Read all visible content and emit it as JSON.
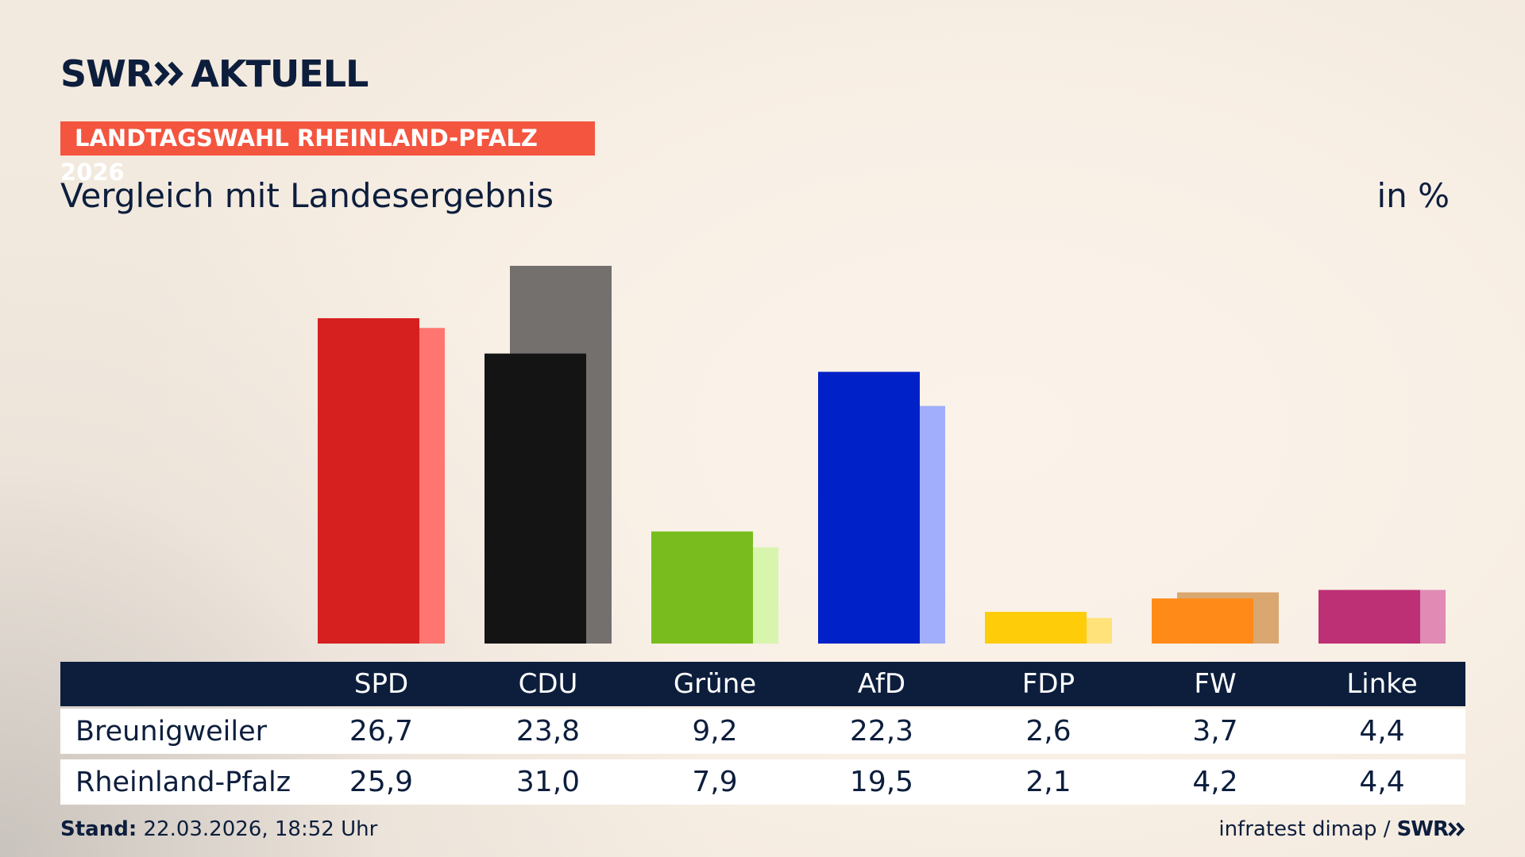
{
  "header": {
    "logo": "SWR",
    "logo_sub": "AKTUELL",
    "badge": "LANDTAGSWAHL RHEINLAND-PFALZ 2026",
    "title": "Vergleich mit Landesergebnis",
    "unit": "in %"
  },
  "chart_data": {
    "type": "bar",
    "categories": [
      "SPD",
      "CDU",
      "Grüne",
      "AfD",
      "FDP",
      "FW",
      "Linke"
    ],
    "series": [
      {
        "name": "Breunigweiler",
        "colors": [
          "#d61f1f",
          "#141414",
          "#78bd1d",
          "#0021c7",
          "#ffcc0a",
          "#ff8a17",
          "#bd3075"
        ],
        "values": [
          26.7,
          23.8,
          9.2,
          22.3,
          2.6,
          3.7,
          4.4
        ],
        "value_labels": [
          "26,7",
          "23,8",
          "9,2",
          "22,3",
          "2,6",
          "3,7",
          "4,4"
        ]
      },
      {
        "name": "Rheinland-Pfalz",
        "colors": [
          "#ff7670",
          "#73706e",
          "#d8f5ae",
          "#a0aefc",
          "#ffe27a",
          "#dba770",
          "#e08ab4"
        ],
        "values": [
          25.9,
          31.0,
          7.9,
          19.5,
          2.1,
          4.2,
          4.4
        ],
        "value_labels": [
          "25,9",
          "31,0",
          "7,9",
          "19,5",
          "2,1",
          "4,2",
          "4,4"
        ]
      }
    ]
  },
  "footer": {
    "stand_label": "Stand:",
    "stand": "22.03.2026, 18:52 Uhr",
    "source": "infratest dimap /",
    "source_logo": "SWR"
  }
}
